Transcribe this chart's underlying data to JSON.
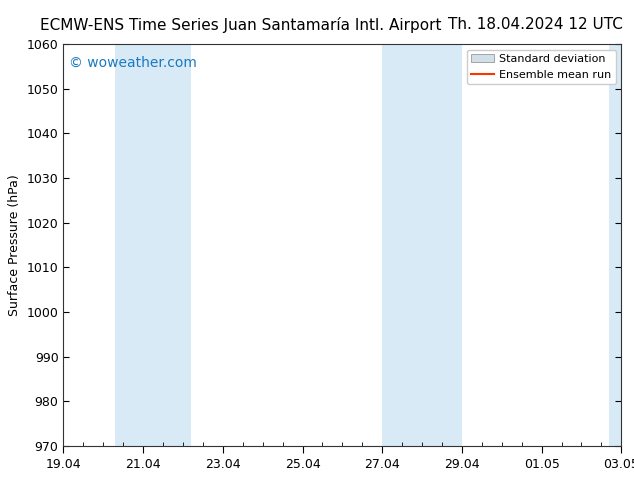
{
  "title_left": "ECMW-ENS Time Series Juan Santamaría Intl. Airport",
  "title_right": "Th. 18.04.2024 12 UTC",
  "ylabel": "Surface Pressure (hPa)",
  "ylim": [
    970,
    1060
  ],
  "yticks": [
    970,
    980,
    990,
    1000,
    1010,
    1020,
    1030,
    1040,
    1050,
    1060
  ],
  "xlim_start": 0.0,
  "xlim_end": 14.0,
  "xtick_labels": [
    "19.04",
    "21.04",
    "23.04",
    "25.04",
    "27.04",
    "29.04",
    "01.05",
    "03.05"
  ],
  "xtick_positions": [
    0,
    2,
    4,
    6,
    8,
    10,
    12,
    14
  ],
  "shaded_bands": [
    {
      "x_start": 1.3,
      "x_end": 3.2,
      "color": "#d9eaf7"
    },
    {
      "x_start": 8.0,
      "x_end": 10.0,
      "color": "#d9eaf7"
    },
    {
      "x_start": 13.7,
      "x_end": 14.0,
      "color": "#d9eaf7"
    }
  ],
  "watermark": "© woweather.com",
  "watermark_color": "#1a7abf",
  "watermark_fontsize": 10,
  "legend_std_color": "#d0dfe8",
  "legend_mean_color": "#ff3300",
  "background_color": "#ffffff",
  "plot_background": "#ffffff",
  "title_fontsize": 11,
  "ylabel_fontsize": 9,
  "tick_fontsize": 9,
  "legend_fontsize": 8
}
